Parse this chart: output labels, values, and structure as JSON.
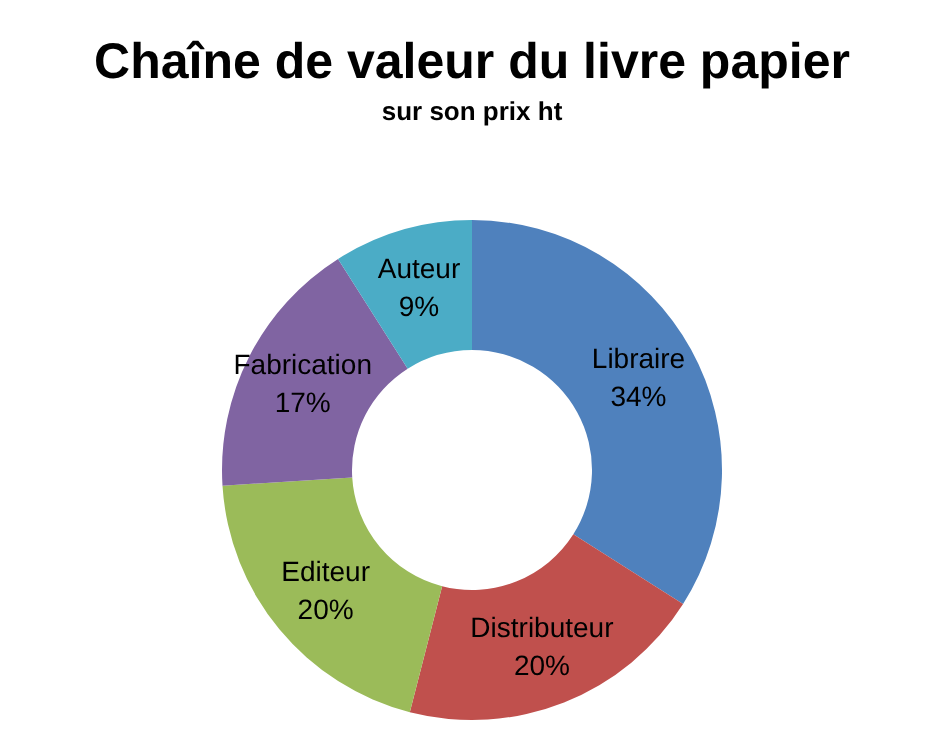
{
  "chart_data": {
    "type": "donut",
    "title": "Chaîne de valeur du livre papier",
    "subtitle": "sur son prix ht",
    "categories": [
      "Libraire",
      "Distributeur",
      "Editeur",
      "Fabrication",
      "Auteur"
    ],
    "values": [
      34,
      20,
      20,
      17,
      9
    ],
    "colors": [
      "#4f81bd",
      "#c0504d",
      "#9bbb59",
      "#8064a2",
      "#4bacc6"
    ],
    "value_labels": [
      "34%",
      "20%",
      "20%",
      "17%",
      "9%"
    ]
  }
}
